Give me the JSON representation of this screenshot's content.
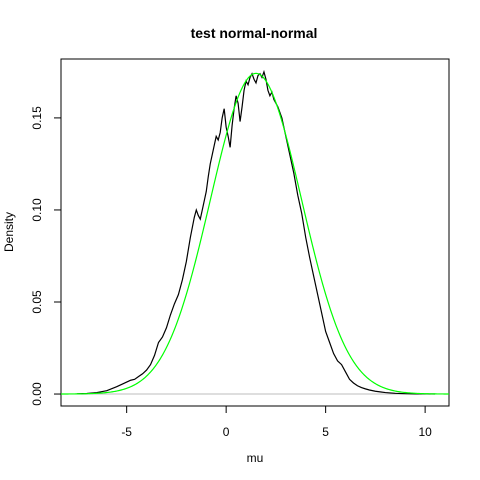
{
  "chart_data": {
    "type": "line",
    "title": "test normal-normal",
    "xlabel": "mu",
    "ylabel": "Density",
    "xlim": [
      -8.3,
      11.2
    ],
    "ylim": [
      -0.0065,
      0.182
    ],
    "xticks": [
      -5,
      0,
      5,
      10
    ],
    "xtick_labels": [
      "-5",
      "0",
      "5",
      "10"
    ],
    "yticks": [
      0.0,
      0.05,
      0.1,
      0.15
    ],
    "ytick_labels": [
      "0.00",
      "0.05",
      "0.10",
      "0.15"
    ],
    "grid": false,
    "baseline_color": "#bebebe",
    "series": [
      {
        "color": "#000000",
        "style": "kde",
        "x": [
          -7.5,
          -7.0,
          -6.5,
          -6.0,
          -5.5,
          -5.2,
          -5.0,
          -4.8,
          -4.6,
          -4.4,
          -4.2,
          -4.0,
          -3.8,
          -3.6,
          -3.4,
          -3.2,
          -3.0,
          -2.8,
          -2.6,
          -2.4,
          -2.2,
          -2.0,
          -1.8,
          -1.6,
          -1.5,
          -1.4,
          -1.3,
          -1.2,
          -1.1,
          -1.0,
          -0.9,
          -0.8,
          -0.7,
          -0.6,
          -0.5,
          -0.4,
          -0.3,
          -0.2,
          -0.1,
          0.0,
          0.1,
          0.2,
          0.3,
          0.4,
          0.5,
          0.6,
          0.7,
          0.8,
          0.9,
          1.0,
          1.1,
          1.2,
          1.3,
          1.4,
          1.5,
          1.6,
          1.7,
          1.8,
          1.9,
          2.0,
          2.1,
          2.2,
          2.3,
          2.4,
          2.5,
          2.6,
          2.8,
          3.0,
          3.2,
          3.4,
          3.6,
          3.8,
          4.0,
          4.2,
          4.4,
          4.6,
          4.8,
          5.0,
          5.2,
          5.4,
          5.6,
          5.8,
          6.0,
          6.2,
          6.4,
          6.6,
          6.8,
          7.0,
          7.2,
          7.5,
          8.0,
          8.5,
          9.0,
          9.5,
          10.0,
          10.5
        ],
        "y": [
          0.0001,
          0.0003,
          0.0008,
          0.0018,
          0.004,
          0.0055,
          0.0065,
          0.0075,
          0.008,
          0.0095,
          0.011,
          0.013,
          0.016,
          0.021,
          0.028,
          0.031,
          0.036,
          0.043,
          0.049,
          0.054,
          0.062,
          0.072,
          0.085,
          0.096,
          0.1,
          0.097,
          0.095,
          0.1,
          0.105,
          0.11,
          0.118,
          0.125,
          0.13,
          0.135,
          0.14,
          0.138,
          0.142,
          0.15,
          0.155,
          0.145,
          0.14,
          0.134,
          0.146,
          0.155,
          0.162,
          0.158,
          0.148,
          0.156,
          0.165,
          0.17,
          0.168,
          0.172,
          0.174,
          0.171,
          0.169,
          0.173,
          0.174,
          0.172,
          0.175,
          0.171,
          0.165,
          0.162,
          0.164,
          0.16,
          0.158,
          0.156,
          0.15,
          0.14,
          0.13,
          0.12,
          0.108,
          0.098,
          0.085,
          0.074,
          0.064,
          0.054,
          0.044,
          0.034,
          0.028,
          0.022,
          0.018,
          0.016,
          0.012,
          0.008,
          0.006,
          0.0045,
          0.0035,
          0.0028,
          0.0022,
          0.0015,
          0.0008,
          0.0004,
          0.0002,
          0.0001,
          5e-05,
          0.0
        ]
      },
      {
        "color": "#00ff00",
        "style": "normal-curve",
        "mean": 1.5,
        "sd": 2.29
      }
    ]
  }
}
